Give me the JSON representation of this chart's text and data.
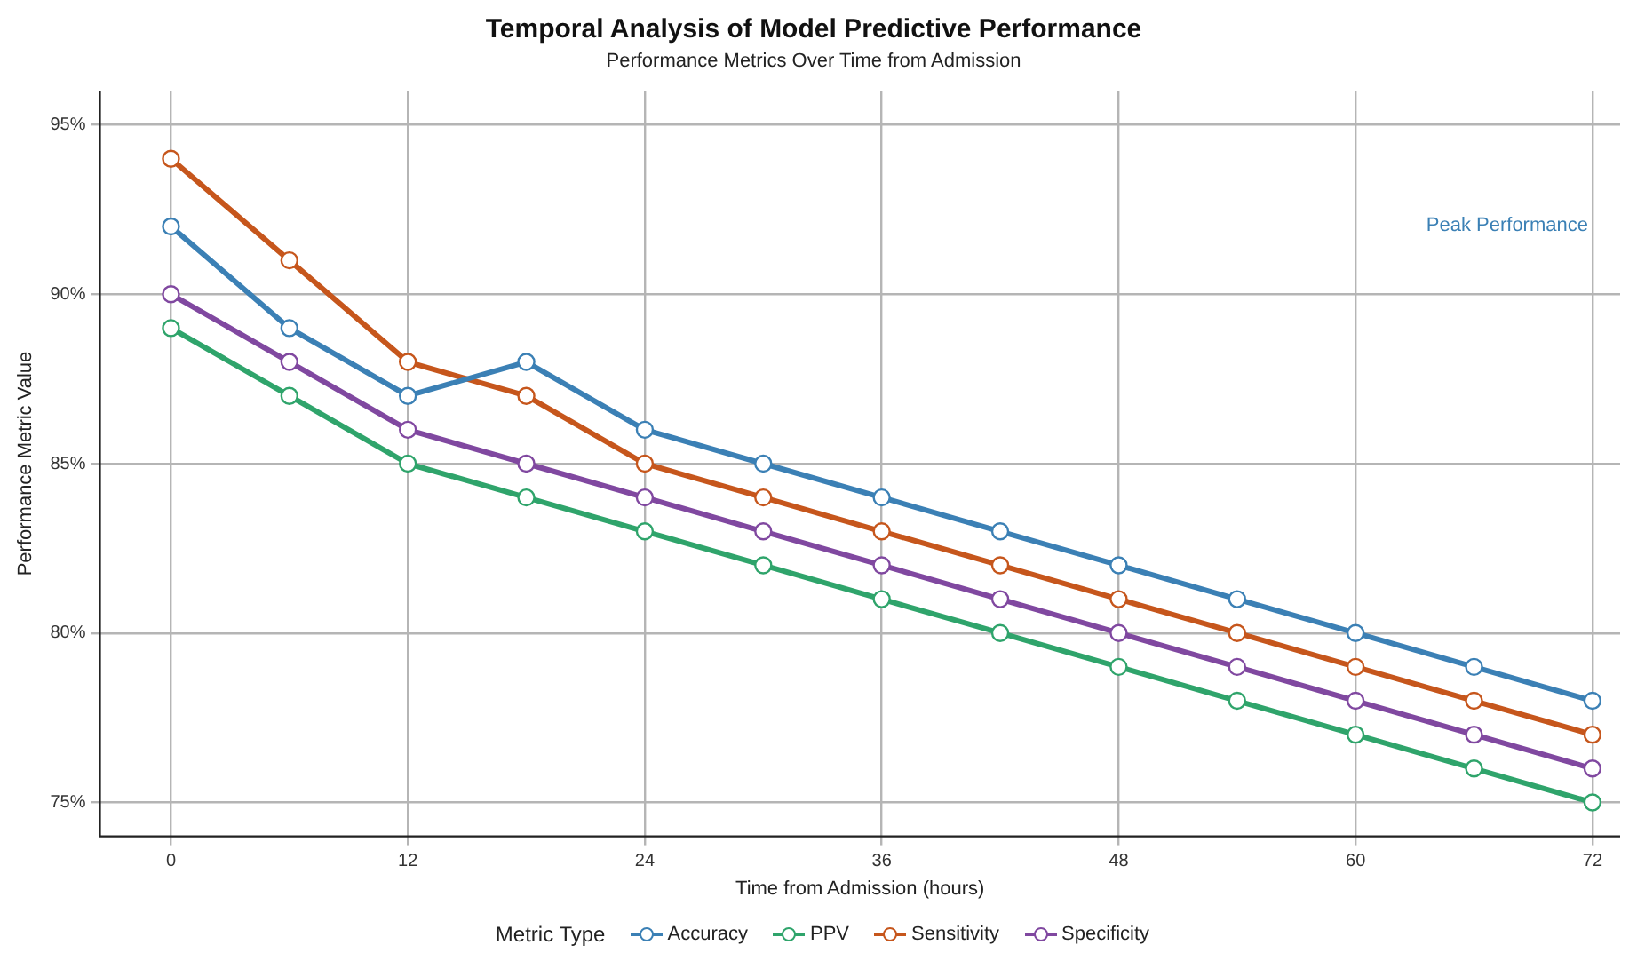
{
  "chart_data": {
    "type": "line",
    "title": "Temporal Analysis of Model Predictive Performance",
    "subtitle": "Performance Metrics Over Time from Admission",
    "xlabel": "Time from Admission (hours)",
    "ylabel": "Performance Metric Value",
    "legend_title": "Metric Type",
    "x": [
      0,
      6,
      12,
      18,
      24,
      30,
      36,
      42,
      48,
      54,
      60,
      66,
      72
    ],
    "series": [
      {
        "name": "Accuracy",
        "color": "#3b80b5",
        "values": [
          92,
          89,
          87,
          88,
          86,
          85,
          84,
          83,
          82,
          81,
          80,
          79,
          78
        ]
      },
      {
        "name": "PPV",
        "color": "#2fa46b",
        "values": [
          89,
          87,
          85,
          84,
          83,
          82,
          81,
          80,
          79,
          78,
          77,
          76,
          75
        ]
      },
      {
        "name": "Sensitivity",
        "color": "#c6561c",
        "values": [
          94,
          91,
          88,
          87,
          85,
          84,
          83,
          82,
          81,
          80,
          79,
          78,
          77
        ]
      },
      {
        "name": "Specificity",
        "color": "#8048a0",
        "values": [
          90,
          88,
          86,
          85,
          84,
          83,
          82,
          81,
          80,
          79,
          78,
          77,
          76
        ]
      }
    ],
    "xlim": [
      -3.6,
      73.4
    ],
    "ylim": [
      74,
      96
    ],
    "xticks": [
      0,
      12,
      24,
      36,
      48,
      60,
      72
    ],
    "yticks": [
      {
        "value": 75,
        "label": "75%"
      },
      {
        "value": 80,
        "label": "80%"
      },
      {
        "value": 85,
        "label": "85%"
      },
      {
        "value": 90,
        "label": "90%"
      },
      {
        "value": 95,
        "label": "95%"
      }
    ],
    "annotations": [
      "Peak Performance"
    ],
    "grid": true,
    "legend": "bottom",
    "marker": "circle",
    "line_style": "solid"
  }
}
